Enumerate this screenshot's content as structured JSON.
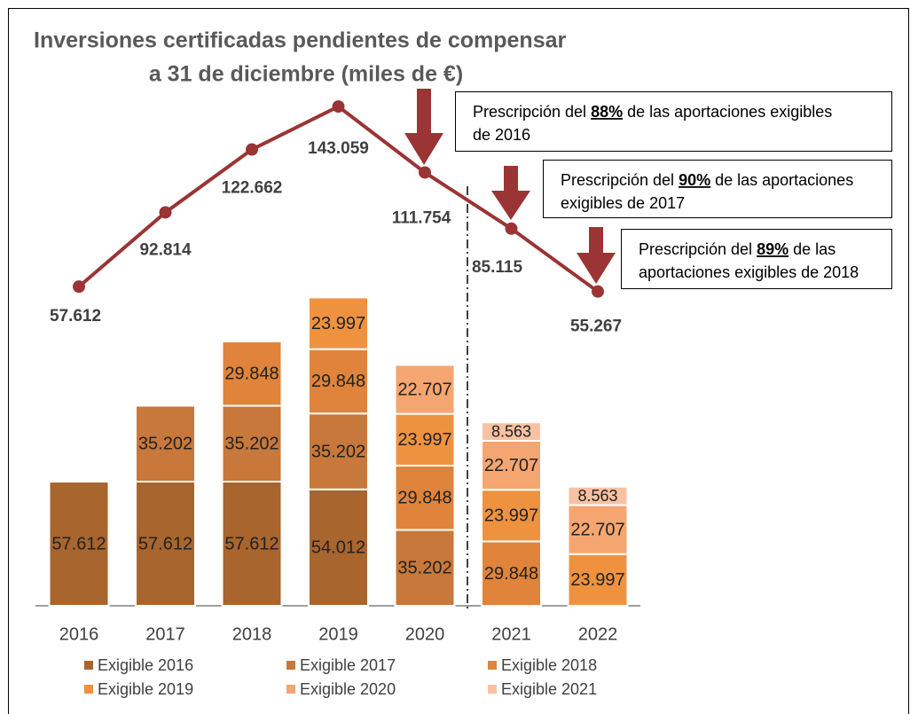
{
  "chart_data": {
    "type": "bar",
    "stacked": true,
    "title": [
      "Inversiones certificadas pendientes de compensar",
      "a 31 de diciembre (miles de €)"
    ],
    "categories": [
      "2016",
      "2017",
      "2018",
      "2019",
      "2020",
      "2021",
      "2022"
    ],
    "series": [
      {
        "name": "Exigible 2016",
        "color": "#a8652e",
        "values": [
          57612,
          57612,
          57612,
          54012,
          null,
          null,
          null
        ],
        "value_labels": [
          "57.612",
          "57.612",
          "57.612",
          "54.012",
          null,
          null,
          null
        ]
      },
      {
        "name": "Exigible 2017",
        "color": "#c7783a",
        "values": [
          null,
          35202,
          35202,
          35202,
          35202,
          null,
          null
        ],
        "value_labels": [
          null,
          "35.202",
          "35.202",
          "35.202",
          "35.202",
          null,
          null
        ]
      },
      {
        "name": "Exigible 2018",
        "color": "#df843a",
        "values": [
          null,
          null,
          29848,
          29848,
          29848,
          29848,
          null
        ],
        "value_labels": [
          null,
          null,
          "29.848",
          "29.848",
          "29.848",
          "29.848",
          null
        ]
      },
      {
        "name": "Exigible 2019",
        "color": "#ef9240",
        "values": [
          null,
          null,
          null,
          23997,
          23997,
          23997,
          23997
        ],
        "value_labels": [
          null,
          null,
          null,
          "23.997",
          "23.997",
          "23.997",
          "23.997"
        ]
      },
      {
        "name": "Exigible 2020",
        "color": "#f5a670",
        "values": [
          null,
          null,
          null,
          null,
          22707,
          22707,
          22707
        ],
        "value_labels": [
          null,
          null,
          null,
          null,
          "22.707",
          "22.707",
          "22.707"
        ]
      },
      {
        "name": "Exigible 2021",
        "color": "#f8c2a2",
        "values": [
          null,
          null,
          null,
          null,
          null,
          8563,
          8563
        ],
        "value_labels": [
          null,
          null,
          null,
          null,
          null,
          "8.563",
          "8.563"
        ]
      }
    ],
    "line": {
      "color": "#9b3434",
      "values": [
        57612,
        92814,
        122662,
        143059,
        111754,
        85115,
        55267
      ],
      "value_labels": [
        "57.612",
        "92.814",
        "122.662",
        "143.059",
        "111.754",
        "85.115",
        "55.267"
      ]
    },
    "annotations": [
      {
        "before": "Prescripción del",
        "highlight": "88%",
        "after": "de las aportaciones exigibles",
        "line2": "de 2016"
      },
      {
        "before": "Prescripción del",
        "highlight": "90%",
        "after": "de las aportaciones",
        "line2": "exigibles de 2017"
      },
      {
        "before": "Prescripción del",
        "highlight": "89%",
        "after": "de las",
        "line2": "aportaciones exigibles de 2018"
      }
    ]
  }
}
